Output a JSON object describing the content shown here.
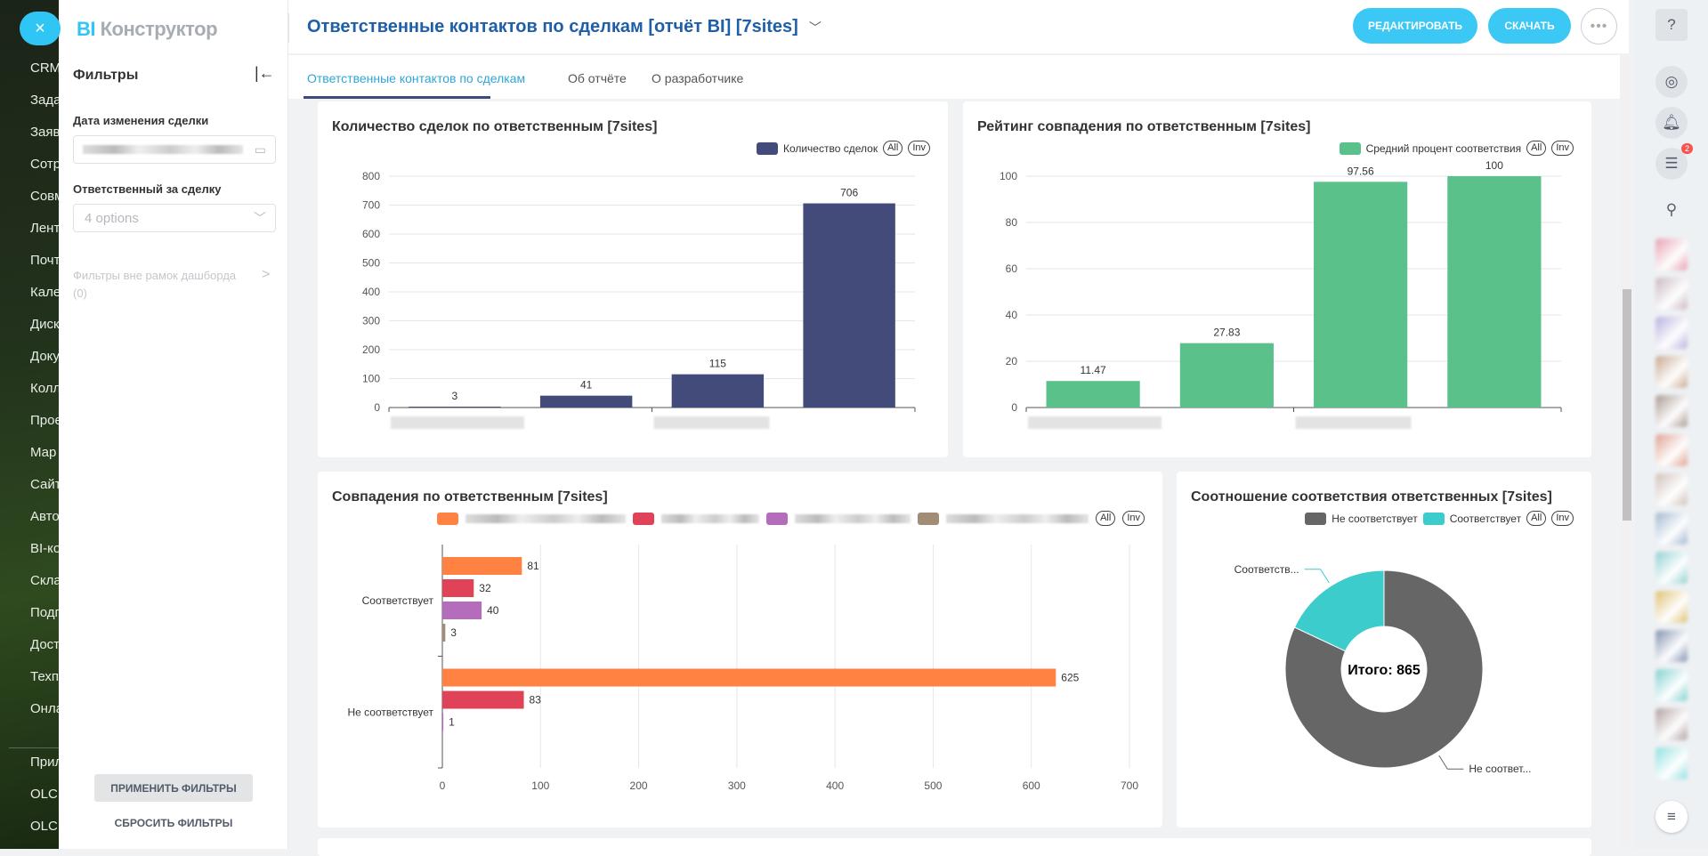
{
  "nav": {
    "items": [
      "CRM",
      "Зада",
      "Заяв",
      "Сотр",
      "Совм",
      "Лент",
      "Почт",
      "Кале",
      "Диск",
      "Доку",
      "Колл",
      "Прое",
      "Мар",
      "Сайт",
      "Авто",
      "BI-ко",
      "Скла",
      "Подп",
      "Дост",
      "Техп",
      "Онла",
      "Прил",
      "OLCH",
      "OLCH"
    ],
    "close_icon": "×"
  },
  "app": {
    "logo_bi": "BI",
    "logo_rest": " Конструктор"
  },
  "filters": {
    "title": "Фильтры",
    "date_label": "Дата изменения сделки",
    "resp_label": "Ответственный за сделку",
    "resp_value": "4 options",
    "outside": "Фильтры вне рамок дашборда (0)",
    "apply": "ПРИМЕНИТЬ ФИЛЬТРЫ",
    "reset": "СБРОСИТЬ ФИЛЬТРЫ"
  },
  "header": {
    "title": "Ответственные контактов по сделкам [отчёт BI] [7sites]",
    "edit": "РЕДАКТИРОВАТЬ",
    "download": "СКАЧАТЬ",
    "more": "•••"
  },
  "tabs": [
    {
      "label": "Ответственные контактов по сделкам",
      "active": true
    },
    {
      "label": "Об отчёте"
    },
    {
      "label": "О разработчике"
    }
  ],
  "legend_buttons": {
    "all": "All",
    "inv": "Inv"
  },
  "rail": {
    "help": "?",
    "chat_badge": "2"
  },
  "colors": {
    "accent": "#2fc6f6",
    "navy": "#434b7b",
    "green": "#5ac18a",
    "orange": "#ff8243",
    "red": "#e04358",
    "purple": "#b36dbb",
    "brown": "#a18d75",
    "grey": "#666666",
    "teal": "#3ccccb"
  },
  "chart_data": [
    {
      "type": "bar",
      "title": "Количество сделок по ответственным [7sites]",
      "series": [
        {
          "name": "Количество сделок",
          "values": [
            3,
            41,
            115,
            706
          ],
          "color": "#434b7b"
        }
      ],
      "ylim": [
        0,
        800
      ],
      "yticks": [
        0,
        100,
        200,
        300,
        400,
        500,
        600,
        700,
        800
      ],
      "grid": true,
      "legend": "top-right"
    },
    {
      "type": "bar",
      "title": "Рейтинг совпадения по ответственным [7sites]",
      "series": [
        {
          "name": "Средний процент соответствия",
          "values": [
            11.47,
            27.83,
            97.56,
            100
          ],
          "color": "#5ac18a"
        }
      ],
      "ylim": [
        0,
        100
      ],
      "yticks": [
        0,
        20,
        40,
        60,
        80,
        100
      ],
      "grid": true,
      "legend": "top-right"
    },
    {
      "type": "bar",
      "orientation": "horizontal",
      "title": "Совпадения по ответственным [7sites]",
      "categories": [
        "Соответствует",
        "Не соответствует"
      ],
      "series": [
        {
          "values": [
            81,
            625
          ],
          "color": "#ff8243"
        },
        {
          "values": [
            32,
            83
          ],
          "color": "#e04358"
        },
        {
          "values": [
            40,
            1
          ],
          "color": "#b36dbb"
        },
        {
          "values": [
            3,
            null
          ],
          "color": "#a18d75"
        }
      ],
      "xlim": [
        0,
        700
      ],
      "xticks": [
        0,
        100,
        200,
        300,
        400,
        500,
        600,
        700
      ],
      "grid": true,
      "legend": "top-right"
    },
    {
      "type": "pie",
      "donut": true,
      "title": "Соотношение соответствия ответственных [7sites]",
      "slices": [
        {
          "name": "Не соответствует",
          "value": 709,
          "color": "#666666",
          "label": "Не соответ..."
        },
        {
          "name": "Соответствует",
          "value": 156,
          "color": "#3ccccb",
          "label": "Соответств..."
        }
      ],
      "center_label": "Итого: 865",
      "legend": "top-right"
    }
  ]
}
